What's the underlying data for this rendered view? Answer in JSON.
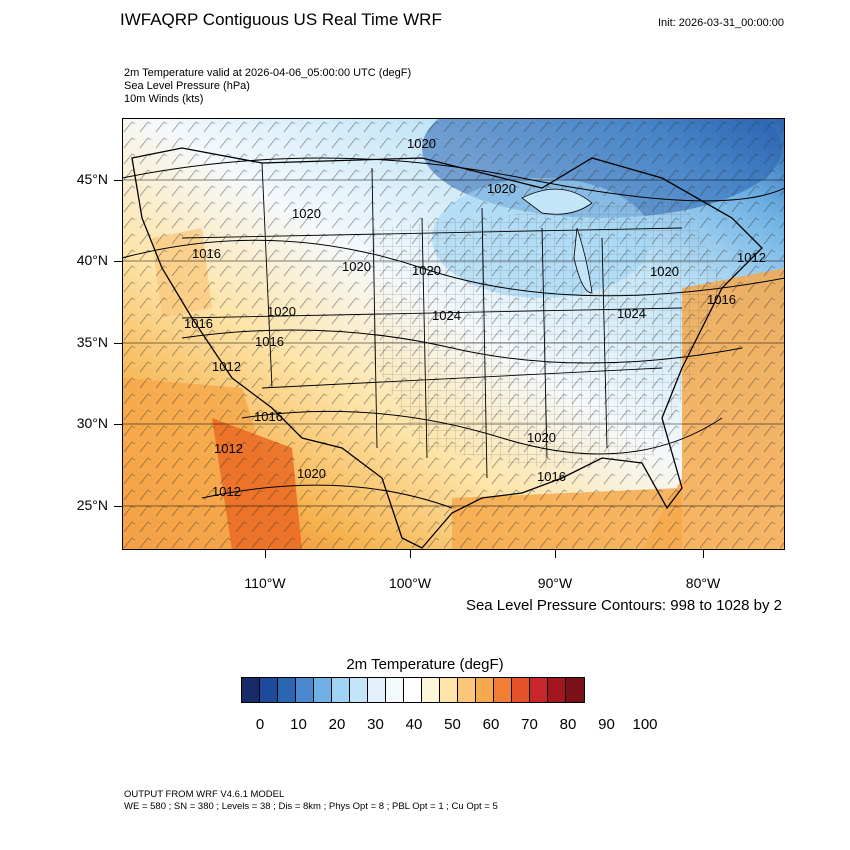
{
  "title": "IWFAQRP Contiguous US Real Time WRF",
  "init": "Init: 2026-03-31_00:00:00",
  "subtitle_lines": [
    "2m Temperature valid at 2026-04-06_05:00:00 UTC   (degF)",
    "Sea Level Pressure   (hPa)",
    "10m Winds   (kts)"
  ],
  "map": {
    "lat_labels": [
      "45°N",
      "40°N",
      "35°N",
      "30°N",
      "25°N"
    ],
    "lon_labels": [
      "110°W",
      "100°W",
      "90°W",
      "80°W"
    ],
    "pressure_labels": [
      "1020",
      "1020",
      "1020",
      "1016",
      "1020",
      "1020",
      "1024",
      "1020",
      "1012",
      "1024",
      "1016",
      "1020",
      "1012",
      "1016",
      "1012",
      "1020",
      "1016",
      "1016",
      "1012",
      "1020",
      "1016"
    ],
    "colors": {
      "cold": "#2a63b0",
      "cool": "#a6d6f5",
      "neutral": "#f5f9fc",
      "warm": "#f6b24d",
      "hot": "#ea6a23"
    }
  },
  "contour_note": "Sea Level Pressure Contours: 998 to 1028 by 2",
  "colorbar": {
    "title": "2m Temperature  (degF)",
    "colors": [
      "#162b6a",
      "#1f4a9b",
      "#2b66b4",
      "#4b8ad0",
      "#6fb1e4",
      "#9fd3f4",
      "#c3e5f7",
      "#e3f2fa",
      "#f4f9fc",
      "#ffffff",
      "#fef6d8",
      "#fde4a8",
      "#fbc67a",
      "#f6a94c",
      "#f07f33",
      "#e4522a",
      "#c9262b",
      "#a2171e",
      "#7a1218"
    ],
    "labels": [
      "0",
      "10",
      "20",
      "30",
      "40",
      "50",
      "60",
      "70",
      "80",
      "90",
      "100"
    ]
  },
  "footer": [
    "OUTPUT FROM WRF V4.6.1 MODEL",
    "WE = 580 ; SN = 380 ; Levels = 38 ; Dis = 8km ; Phys Opt = 8 ; PBL Opt = 1 ; Cu Opt = 5"
  ]
}
